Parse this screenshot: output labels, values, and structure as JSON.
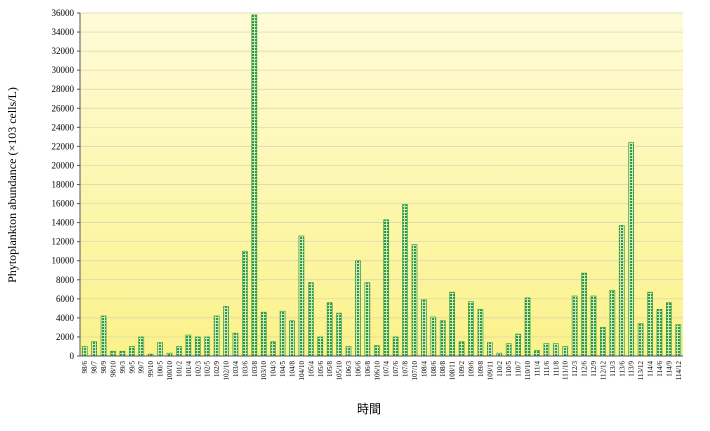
{
  "chart_data": {
    "type": "bar",
    "y_label": "Phytoplankton abundance (×103 cells/L)",
    "x_label": "時間",
    "color": "#2e9a3a",
    "grid": true,
    "ylim": [
      0,
      36000
    ],
    "yticks": [
      0,
      2000,
      4000,
      6000,
      8000,
      10000,
      12000,
      14000,
      16000,
      18000,
      20000,
      22000,
      24000,
      26000,
      28000,
      30000,
      32000,
      34000,
      36000
    ],
    "categories": [
      "98/6",
      "98/7",
      "98/9",
      "98/10",
      "99/3",
      "99/5",
      "99/7",
      "99/10",
      "100/5",
      "100/10",
      "101/2",
      "101/4",
      "102/3",
      "102/5",
      "102/9",
      "102/10",
      "103/4",
      "103/6",
      "103/8",
      "103/10",
      "104/3",
      "104/5",
      "104/8",
      "104/10",
      "105/4",
      "105/6",
      "105/8",
      "105/10",
      "106/3",
      "106/6",
      "106/8",
      "106/10",
      "107/4",
      "107/6",
      "107/8",
      "107/10",
      "108/4",
      "108/6",
      "108/8",
      "108/11",
      "109/2",
      "109/6",
      "109/8",
      "109/11",
      "110/2",
      "110/5",
      "110/7",
      "110/10",
      "111/4",
      "111/6",
      "111/8",
      "111/10",
      "112/3",
      "112/6",
      "112/9",
      "112/12",
      "113/3",
      "113/6",
      "113/9",
      "113/12",
      "114/4",
      "114/6",
      "114/9",
      "114/12"
    ],
    "values": [
      1000,
      1500,
      4200,
      500,
      500,
      1000,
      2000,
      200,
      1400,
      300,
      1000,
      2200,
      2000,
      2000,
      4200,
      5200,
      2400,
      11000,
      35800,
      4600,
      1500,
      4700,
      3700,
      12600,
      7700,
      2000,
      5600,
      4500,
      1000,
      10000,
      7700,
      1100,
      14300,
      2000,
      15900,
      11700,
      5900,
      4100,
      3700,
      6700,
      1500,
      5700,
      4900,
      1400,
      300,
      1300,
      2300,
      6100,
      600,
      1300,
      1300,
      1000,
      6300,
      8700,
      6300,
      3000,
      6900,
      13700,
      22400,
      3400,
      6700,
      4900,
      5600,
      3300
    ]
  }
}
